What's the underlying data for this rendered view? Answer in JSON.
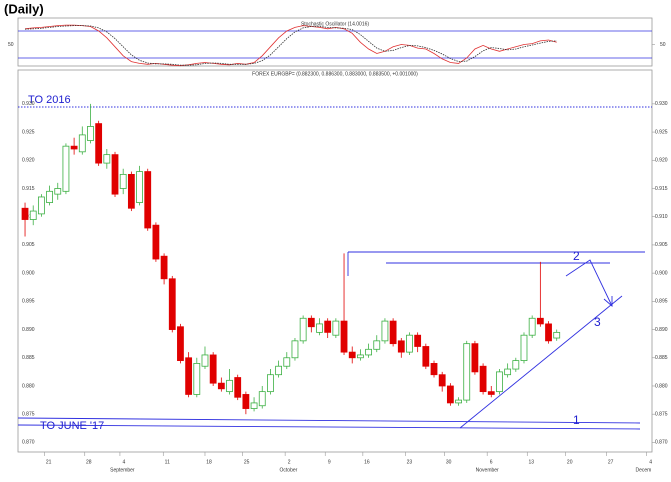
{
  "header": {
    "title": "(Daily)"
  },
  "chart_data": [
    {
      "type": "oscillator",
      "title": "Stochastic Oscillator (14.0016)",
      "ylim": [
        0,
        100
      ],
      "yticks": [
        50
      ],
      "levels": [
        20,
        80
      ],
      "series": [
        {
          "name": "%K",
          "color": "#e03030",
          "style": "solid",
          "values": [
            85,
            87,
            88,
            90,
            92,
            93,
            93,
            92,
            90,
            80,
            65,
            45,
            25,
            12,
            8,
            6,
            8,
            6,
            4,
            3,
            5,
            8,
            10,
            8,
            6,
            5,
            8,
            6,
            10,
            25,
            45,
            65,
            80,
            88,
            92,
            90,
            88,
            85,
            88,
            85,
            75,
            55,
            40,
            30,
            35,
            45,
            50,
            48,
            42,
            40,
            30,
            18,
            10,
            8,
            20,
            40,
            48,
            40,
            35,
            40,
            45,
            50,
            52,
            58,
            60,
            55
          ]
        },
        {
          "name": "%D",
          "color": "#303030",
          "style": "dotted",
          "values": [
            84,
            85,
            86,
            88,
            90,
            91,
            92,
            92,
            91,
            87,
            78,
            63,
            45,
            27,
            15,
            9,
            7,
            7,
            6,
            4,
            4,
            5,
            8,
            9,
            8,
            6,
            6,
            6,
            8,
            14,
            27,
            45,
            63,
            78,
            87,
            90,
            90,
            88,
            87,
            86,
            83,
            72,
            57,
            42,
            35,
            37,
            43,
            48,
            47,
            43,
            37,
            29,
            19,
            12,
            13,
            23,
            36,
            43,
            41,
            38,
            40,
            45,
            49,
            53,
            57,
            58
          ]
        }
      ]
    },
    {
      "type": "candlestick",
      "title": "FOREX EURGBP= (0.882300, 0.886300, 0.883000, 0.883500, +0.001000)",
      "up_color": "#3cb043",
      "down_color": "#e00000",
      "open": [
        0.9115,
        0.9095,
        0.9105,
        0.9125,
        0.914,
        0.9145,
        0.9225,
        0.9215,
        0.9235,
        0.9265,
        0.9195,
        0.921,
        0.915,
        0.9175,
        0.9125,
        0.918,
        0.9085,
        0.903,
        0.899,
        0.8905,
        0.885,
        0.8785,
        0.8835,
        0.8855,
        0.8805,
        0.879,
        0.8815,
        0.8785,
        0.876,
        0.8765,
        0.879,
        0.882,
        0.8835,
        0.885,
        0.888,
        0.892,
        0.8895,
        0.8915,
        0.889,
        0.8915,
        0.886,
        0.885,
        0.8855,
        0.8865,
        0.888,
        0.8915,
        0.888,
        0.886,
        0.889,
        0.887,
        0.884,
        0.882,
        0.88,
        0.877,
        0.8775,
        0.8875,
        0.8835,
        0.879,
        0.879,
        0.882,
        0.883,
        0.8845,
        0.889,
        0.892,
        0.891,
        0.8885
      ],
      "high": [
        0.9125,
        0.912,
        0.914,
        0.9155,
        0.916,
        0.923,
        0.924,
        0.926,
        0.93,
        0.927,
        0.922,
        0.9215,
        0.9185,
        0.918,
        0.919,
        0.9185,
        0.909,
        0.9035,
        0.8995,
        0.891,
        0.886,
        0.885,
        0.887,
        0.886,
        0.8815,
        0.883,
        0.882,
        0.879,
        0.878,
        0.88,
        0.883,
        0.8845,
        0.886,
        0.8885,
        0.8925,
        0.8925,
        0.892,
        0.892,
        0.892,
        0.9035,
        0.887,
        0.8865,
        0.8875,
        0.889,
        0.892,
        0.892,
        0.8885,
        0.8895,
        0.8895,
        0.8875,
        0.8845,
        0.8825,
        0.8805,
        0.878,
        0.888,
        0.888,
        0.884,
        0.88,
        0.883,
        0.884,
        0.885,
        0.8895,
        0.8925,
        0.902,
        0.8915,
        0.89
      ],
      "low": [
        0.9065,
        0.9085,
        0.91,
        0.912,
        0.913,
        0.914,
        0.921,
        0.921,
        0.923,
        0.919,
        0.9185,
        0.9135,
        0.914,
        0.911,
        0.912,
        0.9075,
        0.902,
        0.898,
        0.8895,
        0.884,
        0.878,
        0.878,
        0.883,
        0.88,
        0.879,
        0.8785,
        0.8775,
        0.875,
        0.8755,
        0.876,
        0.8785,
        0.8815,
        0.883,
        0.8845,
        0.8875,
        0.8895,
        0.889,
        0.8885,
        0.8885,
        0.8855,
        0.884,
        0.8845,
        0.885,
        0.886,
        0.8875,
        0.887,
        0.885,
        0.8855,
        0.886,
        0.883,
        0.8815,
        0.879,
        0.8765,
        0.8765,
        0.877,
        0.882,
        0.8785,
        0.878,
        0.8785,
        0.8815,
        0.8825,
        0.884,
        0.8885,
        0.8905,
        0.8875,
        0.888
      ],
      "close": [
        0.9095,
        0.911,
        0.9135,
        0.9145,
        0.915,
        0.9225,
        0.922,
        0.9245,
        0.926,
        0.9195,
        0.921,
        0.914,
        0.9175,
        0.9115,
        0.918,
        0.908,
        0.9025,
        0.899,
        0.89,
        0.8845,
        0.8785,
        0.884,
        0.8855,
        0.8805,
        0.8795,
        0.881,
        0.878,
        0.876,
        0.877,
        0.879,
        0.882,
        0.8835,
        0.885,
        0.888,
        0.892,
        0.8905,
        0.891,
        0.8895,
        0.8915,
        0.886,
        0.885,
        0.8855,
        0.8865,
        0.888,
        0.8915,
        0.8875,
        0.886,
        0.889,
        0.887,
        0.8835,
        0.882,
        0.88,
        0.877,
        0.8775,
        0.8875,
        0.8825,
        0.879,
        0.8785,
        0.8825,
        0.883,
        0.8845,
        0.889,
        0.892,
        0.891,
        0.888,
        0.8895
      ],
      "xlim": [
        -0.86,
        76.65
      ],
      "xticks": [
        {
          "value": 2.4,
          "label": "21"
        },
        {
          "value": 7.3,
          "label": "28"
        },
        {
          "value": 11.6,
          "label": "4"
        },
        {
          "value": 16.9,
          "label": "11"
        },
        {
          "value": 22,
          "label": "18"
        },
        {
          "value": 26.6,
          "label": "25"
        },
        {
          "value": 31.8,
          "label": "2"
        },
        {
          "value": 36.7,
          "label": "9"
        },
        {
          "value": 41.3,
          "label": "16"
        },
        {
          "value": 46.5,
          "label": "23"
        },
        {
          "value": 51.3,
          "label": "30"
        },
        {
          "value": 56.5,
          "label": "6"
        },
        {
          "value": 61.4,
          "label": "13"
        },
        {
          "value": 66.1,
          "label": "20"
        },
        {
          "value": 71.1,
          "label": "27"
        },
        {
          "value": 76,
          "label": "4"
        }
      ],
      "month_labels": [
        {
          "value": 11.9,
          "label": "September"
        },
        {
          "value": 32.2,
          "label": "October"
        },
        {
          "value": 56.5,
          "label": "November"
        },
        {
          "value": 75.6,
          "label": "Decem"
        }
      ],
      "ylim": [
        0.8683,
        0.936
      ],
      "yticks": [
        {
          "value": 0.87,
          "label": "0.870"
        },
        {
          "value": 0.875,
          "label": "0.875"
        },
        {
          "value": 0.88,
          "label": "0.880"
        },
        {
          "value": 0.885,
          "label": "0.885"
        },
        {
          "value": 0.89,
          "label": "0.890"
        },
        {
          "value": 0.895,
          "label": "0.895"
        },
        {
          "value": 0.9,
          "label": "0.900"
        },
        {
          "value": 0.905,
          "label": "0.905"
        },
        {
          "value": 0.91,
          "label": "0.910"
        },
        {
          "value": 0.915,
          "label": "0.915"
        },
        {
          "value": 0.92,
          "label": "0.920"
        },
        {
          "value": 0.925,
          "label": "0.925"
        },
        {
          "value": 0.93,
          "label": "0.930"
        }
      ],
      "annotations": [
        "TO 2016",
        "TO JUNE '17",
        "1",
        "2",
        "3"
      ]
    }
  ]
}
